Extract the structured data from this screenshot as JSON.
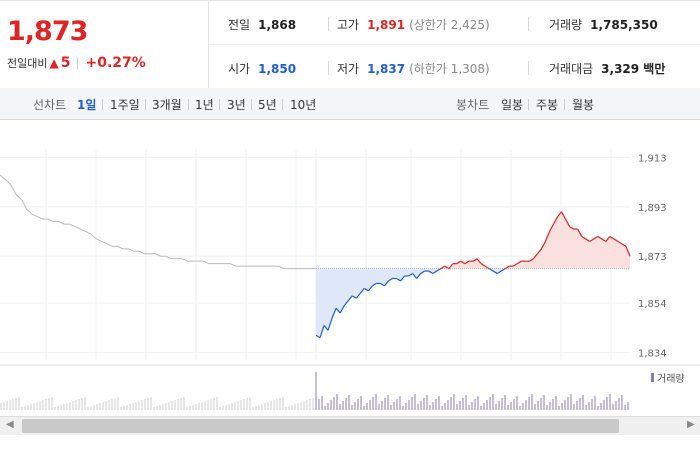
{
  "price": {
    "current": "1,873",
    "change_label": "전일대비",
    "change_arrow": "▲",
    "change_value": "5",
    "change_pct": "+0.27%"
  },
  "stats": {
    "prev_close_label": "전일",
    "prev_close": "1,868",
    "high_label": "고가",
    "high": "1,891",
    "upper_limit": "(상한가 2,425)",
    "volume_label": "거래량",
    "volume": "1,785,350",
    "open_label": "시가",
    "open": "1,850",
    "low_label": "저가",
    "low": "1,837",
    "lower_limit": "(하한가 1,308)",
    "amount_label": "거래대금",
    "amount": "3,329 백만"
  },
  "toolbar": {
    "line_chart_label": "선차트",
    "line_ranges": [
      "1일",
      "1주일",
      "3개월",
      "1년",
      "3년",
      "5년",
      "10년"
    ],
    "active_range": "1일",
    "candle_chart_label": "봉차트",
    "candle_ranges": [
      "일봉",
      "주봉",
      "월봉"
    ]
  },
  "colors": {
    "up": "#e02424",
    "down": "#1f5ed6",
    "prev": "#bbbbbb",
    "volume": "#8a7bb8"
  },
  "chart_data": {
    "type": "line",
    "reference": 1868,
    "ylim": [
      1831,
      1916
    ],
    "y_ticks": [
      "1,913",
      "1,893",
      "1,873",
      "1,854",
      "1,834"
    ],
    "y_tick_values": [
      1913,
      1893,
      1873,
      1854,
      1834
    ],
    "volume_legend": "거래량",
    "prev_session": [
      1906,
      1904,
      1902,
      1898,
      1896,
      1892,
      1890,
      1889,
      1888,
      1888,
      1887,
      1887,
      1886,
      1886,
      1885,
      1884,
      1883,
      1882,
      1880,
      1879,
      1878,
      1877,
      1877,
      1876,
      1876,
      1875,
      1875,
      1874,
      1874,
      1874,
      1873,
      1873,
      1872,
      1872,
      1872,
      1871,
      1871,
      1871,
      1871,
      1870,
      1870,
      1870,
      1870,
      1870,
      1869,
      1869,
      1869,
      1869,
      1869,
      1869,
      1869,
      1869,
      1869,
      1868,
      1868,
      1868,
      1868,
      1868,
      1868,
      1868
    ],
    "today": [
      1841,
      1840,
      1845,
      1843,
      1848,
      1852,
      1850,
      1853,
      1855,
      1857,
      1856,
      1858,
      1860,
      1859,
      1861,
      1862,
      1862,
      1861,
      1863,
      1864,
      1864,
      1863,
      1865,
      1865,
      1866,
      1864,
      1866,
      1867,
      1867,
      1866,
      1867,
      1868,
      1869,
      1868,
      1870,
      1870,
      1871,
      1870,
      1871,
      1871,
      1872,
      1870,
      1869,
      1868,
      1867,
      1866,
      1867,
      1868,
      1869,
      1869,
      1870,
      1871,
      1871,
      1871,
      1872,
      1874,
      1876,
      1879,
      1883,
      1886,
      1889,
      1891,
      1888,
      1885,
      1884,
      1884,
      1881,
      1880,
      1879,
      1880,
      1881,
      1880,
      1879,
      1881,
      1880,
      1879,
      1878,
      1877,
      1873
    ]
  }
}
